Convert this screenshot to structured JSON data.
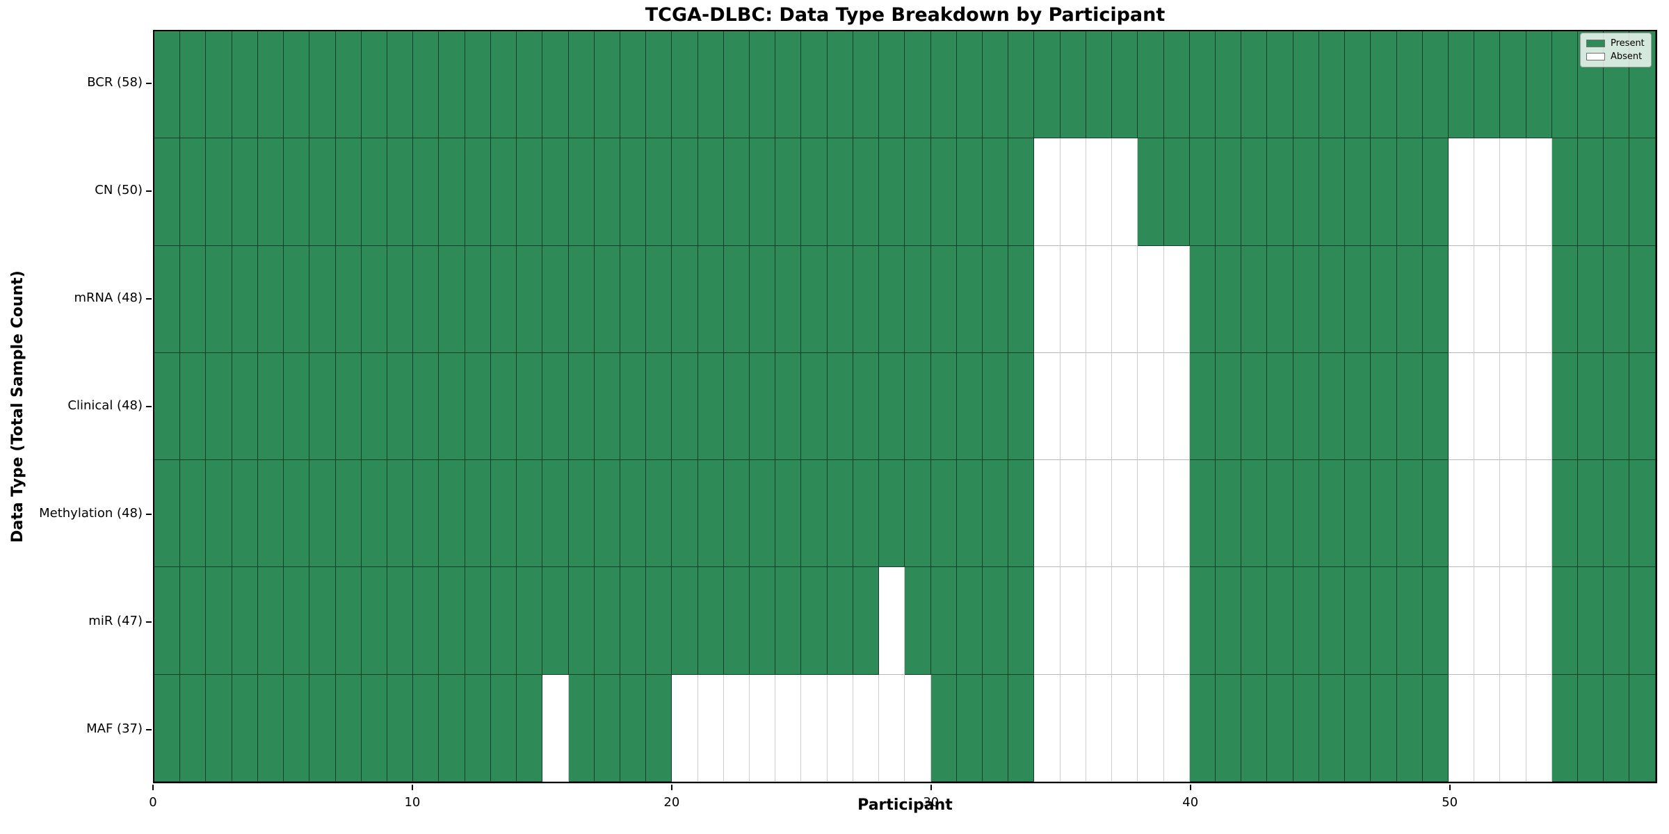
{
  "figure": {
    "background": "#ffffff"
  },
  "chart_data": {
    "type": "heatmap",
    "title": "TCGA-DLBC: Data Type Breakdown by Participant",
    "xlabel": "Participant",
    "ylabel": "Data Type (Total Sample Count)",
    "n_participants": 58,
    "x_range": [
      0,
      58
    ],
    "x_tick_values": [
      0,
      10,
      20,
      30,
      40,
      50
    ],
    "x_tick_labels": [
      "0",
      "10",
      "20",
      "30",
      "40",
      "50"
    ],
    "value_encoding": {
      "present": 1,
      "absent": 0
    },
    "rows": [
      {
        "label": "BCR (58)",
        "name": "BCR",
        "total_count": 58,
        "absent_participants": []
      },
      {
        "label": "CN (50)",
        "name": "CN",
        "total_count": 50,
        "absent_participants": [
          34,
          35,
          36,
          37,
          50,
          51,
          52,
          53
        ]
      },
      {
        "label": "mRNA (48)",
        "name": "mRNA",
        "total_count": 48,
        "absent_participants": [
          34,
          35,
          36,
          37,
          38,
          39,
          50,
          51,
          52,
          53
        ]
      },
      {
        "label": "Clinical (48)",
        "name": "Clinical",
        "total_count": 48,
        "absent_participants": [
          34,
          35,
          36,
          37,
          38,
          39,
          50,
          51,
          52,
          53
        ]
      },
      {
        "label": "Methylation (48)",
        "name": "Methylation",
        "total_count": 48,
        "absent_participants": [
          34,
          35,
          36,
          37,
          38,
          39,
          50,
          51,
          52,
          53
        ]
      },
      {
        "label": "miR (47)",
        "name": "miR",
        "total_count": 47,
        "absent_participants": [
          28,
          34,
          35,
          36,
          37,
          38,
          39,
          50,
          51,
          52,
          53
        ]
      },
      {
        "label": "MAF (37)",
        "name": "MAF",
        "total_count": 37,
        "absent_participants": [
          15,
          20,
          21,
          22,
          23,
          24,
          25,
          26,
          27,
          28,
          29,
          34,
          35,
          36,
          37,
          38,
          39,
          50,
          51,
          52,
          53
        ]
      }
    ],
    "legend": {
      "position": "upper right",
      "entries": [
        {
          "label": "Present",
          "color": "#2e8b57"
        },
        {
          "label": "Absent",
          "color": "#ffffff"
        }
      ]
    },
    "colors": {
      "present": "#2e8b57",
      "absent": "#ffffff",
      "axis": "#000000"
    },
    "grid": true
  }
}
